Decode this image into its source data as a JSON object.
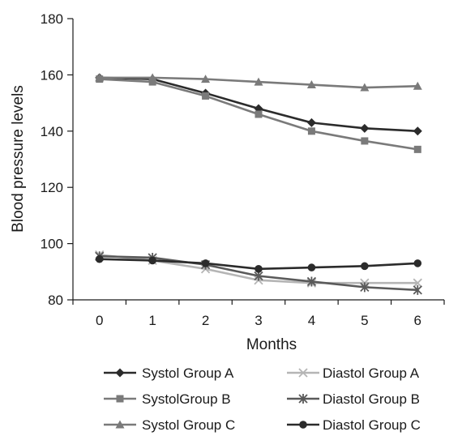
{
  "chart_data": {
    "type": "line",
    "title": "",
    "xlabel": "Months",
    "ylabel": "Blood pressure levels",
    "x": [
      0,
      1,
      2,
      3,
      4,
      5,
      6
    ],
    "x_tick_labels": [
      "0",
      "1",
      "2",
      "3",
      "4",
      "5",
      "6"
    ],
    "y_ticks": [
      80,
      100,
      120,
      140,
      160,
      180
    ],
    "y_tick_labels": [
      "80",
      "100",
      "120",
      "140",
      "160",
      "180"
    ],
    "xlim": [
      -0.5,
      6.5
    ],
    "ylim": [
      80,
      180
    ],
    "grid": false,
    "legend_position": "bottom",
    "series": [
      {
        "name": "Systol Group A",
        "marker": "diamond",
        "color": "#2b2b2b",
        "values": [
          159,
          158.5,
          153.5,
          148,
          143,
          141,
          140
        ]
      },
      {
        "name": "SystolGroup B",
        "marker": "square",
        "color": "#7a7a7a",
        "values": [
          158.5,
          157.5,
          152.5,
          146,
          140,
          136.5,
          133.5
        ]
      },
      {
        "name": "Systol Group C",
        "marker": "triangle",
        "color": "#7a7a7a",
        "values": [
          159,
          159,
          158.5,
          157.5,
          156.5,
          155.5,
          156
        ]
      },
      {
        "name": "Diastol Group A",
        "marker": "x",
        "color": "#b5b5b5",
        "values": [
          96,
          94,
          91,
          87,
          86,
          86,
          86
        ]
      },
      {
        "name": "Diastol Group B",
        "marker": "star",
        "color": "#5a5a5a",
        "values": [
          95.5,
          95,
          92.5,
          88.5,
          86.5,
          84.5,
          83.5
        ]
      },
      {
        "name": "Diastol Group C",
        "marker": "circle",
        "color": "#2b2b2b",
        "values": [
          94.5,
          94,
          93,
          91,
          91.5,
          92,
          93
        ]
      }
    ]
  }
}
